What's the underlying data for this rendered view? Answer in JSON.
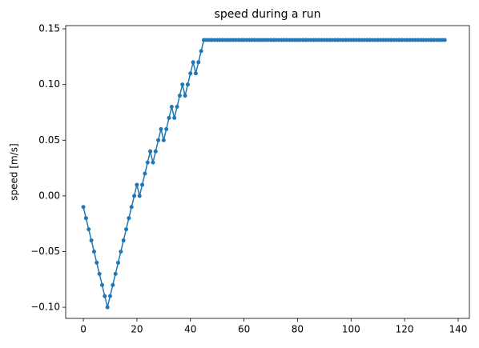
{
  "chart_data": {
    "type": "line",
    "title": "speed during a run",
    "ylabel": "speed [m/s]",
    "x": [
      0,
      1,
      2,
      3,
      4,
      5,
      6,
      7,
      8,
      9,
      10,
      11,
      12,
      13,
      14,
      15,
      16,
      17,
      18,
      19,
      20,
      21,
      22,
      23,
      24,
      25,
      26,
      27,
      28,
      29,
      30,
      31,
      32,
      33,
      34,
      35,
      36,
      37,
      38,
      39,
      40,
      41,
      42,
      43,
      44,
      45,
      46,
      47,
      48,
      49,
      50,
      51,
      52,
      53,
      54,
      55,
      56,
      57,
      58,
      59,
      60,
      61,
      62,
      63,
      64,
      65,
      66,
      67,
      68,
      69,
      70,
      71,
      72,
      73,
      74,
      75,
      76,
      77,
      78,
      79,
      80,
      81,
      82,
      83,
      84,
      85,
      86,
      87,
      88,
      89,
      90,
      91,
      92,
      93,
      94,
      95,
      96,
      97,
      98,
      99,
      100,
      101,
      102,
      103,
      104,
      105,
      106,
      107,
      108,
      109,
      110,
      111,
      112,
      113,
      114,
      115,
      116,
      117,
      118,
      119,
      120,
      121,
      122,
      123,
      124,
      125,
      126,
      127,
      128,
      129,
      130,
      131,
      132,
      133,
      134,
      135
    ],
    "series": [
      {
        "color": "#1f77b4",
        "values": [
          -0.01,
          -0.02,
          -0.03,
          -0.04,
          -0.05,
          -0.06,
          -0.07,
          -0.08,
          -0.09,
          -0.1,
          -0.09,
          -0.08,
          -0.07,
          -0.06,
          -0.05,
          -0.04,
          -0.03,
          -0.02,
          -0.01,
          0.0,
          0.01,
          0.0,
          0.01,
          0.02,
          0.03,
          0.04,
          0.03,
          0.04,
          0.05,
          0.06,
          0.05,
          0.06,
          0.07,
          0.08,
          0.07,
          0.08,
          0.09,
          0.1,
          0.09,
          0.1,
          0.11,
          0.12,
          0.11,
          0.12,
          0.13,
          0.14,
          0.14,
          0.14,
          0.14,
          0.14,
          0.14,
          0.14,
          0.14,
          0.14,
          0.14,
          0.14,
          0.14,
          0.14,
          0.14,
          0.14,
          0.14,
          0.14,
          0.14,
          0.14,
          0.14,
          0.14,
          0.14,
          0.14,
          0.14,
          0.14,
          0.14,
          0.14,
          0.14,
          0.14,
          0.14,
          0.14,
          0.14,
          0.14,
          0.14,
          0.14,
          0.14,
          0.14,
          0.14,
          0.14,
          0.14,
          0.14,
          0.14,
          0.14,
          0.14,
          0.14,
          0.14,
          0.14,
          0.14,
          0.14,
          0.14,
          0.14,
          0.14,
          0.14,
          0.14,
          0.14,
          0.14,
          0.14,
          0.14,
          0.14,
          0.14,
          0.14,
          0.14,
          0.14,
          0.14,
          0.14,
          0.14,
          0.14,
          0.14,
          0.14,
          0.14,
          0.14,
          0.14,
          0.14,
          0.14,
          0.14,
          0.14,
          0.14,
          0.14,
          0.14,
          0.14,
          0.14,
          0.14,
          0.14,
          0.14,
          0.14,
          0.14,
          0.14,
          0.14,
          0.14,
          0.14,
          0.14
        ]
      }
    ],
    "xlim": [
      -6.6,
      144.2
    ],
    "xticks": [
      0,
      20,
      40,
      60,
      80,
      100,
      120,
      140
    ],
    "ylim": [
      -0.11,
      0.1529
    ],
    "yticks": [
      {
        "value": -0.1,
        "label": "−0.10"
      },
      {
        "value": -0.05,
        "label": "−0.05"
      },
      {
        "value": 0,
        "label": "0.00"
      },
      {
        "value": 0.05,
        "label": "0.05"
      },
      {
        "value": 0.1,
        "label": "0.10"
      },
      {
        "value": 0.15,
        "label": "0.15"
      }
    ],
    "grid": false
  }
}
